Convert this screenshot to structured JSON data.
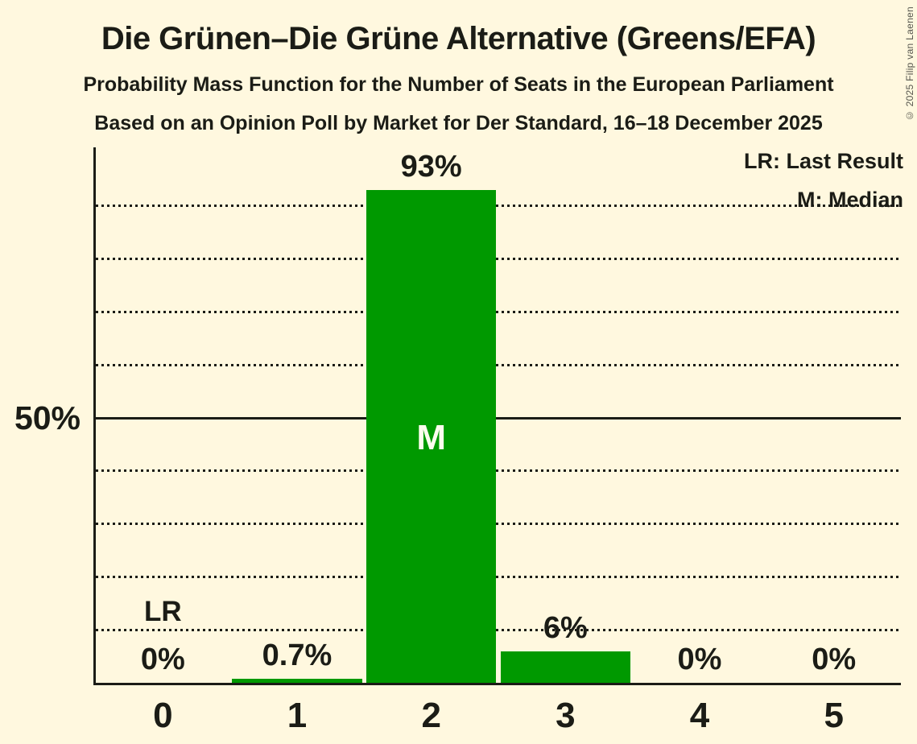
{
  "page": {
    "title": "Die Grünen–Die Grüne Alternative (Greens/EFA)",
    "subtitle1": "Probability Mass Function for the Number of Seats in the European Parliament",
    "subtitle2": "Based on an Opinion Poll by Market for Der Standard, 16–18 December 2025",
    "copyright": "© 2025 Filip van Laenen"
  },
  "legend": {
    "lr": "LR: Last Result",
    "m": "M: Median"
  },
  "colors": {
    "background": "#FFF8DF",
    "bar": "#009900",
    "text": "#1B1C16",
    "inside_bar_label": "#FDFCEE"
  },
  "chart_data": {
    "type": "bar",
    "title": "Die Grünen–Die Grüne Alternative (Greens/EFA)",
    "xlabel": "",
    "ylabel": "",
    "categories": [
      "0",
      "1",
      "2",
      "3",
      "4",
      "5"
    ],
    "values": [
      0,
      0.7,
      93,
      6,
      0,
      0
    ],
    "value_labels": [
      "0%",
      "0.7%",
      "93%",
      "6%",
      "0%",
      "0%"
    ],
    "ylim": [
      0,
      100
    ],
    "y_tick": {
      "percent": 50,
      "label": "50%"
    },
    "gridlines_percent": [
      10,
      20,
      30,
      40,
      50,
      60,
      70,
      80,
      90
    ],
    "solid_gridline_percent": 50,
    "grid": "dotted-horizontal",
    "legend_position": "top-right",
    "annotations": [
      {
        "label": "LR",
        "category": "0",
        "meaning": "Last Result",
        "placement": "above-bar"
      },
      {
        "label": "M",
        "category": "2",
        "meaning": "Median",
        "placement": "inside-bar"
      }
    ]
  }
}
